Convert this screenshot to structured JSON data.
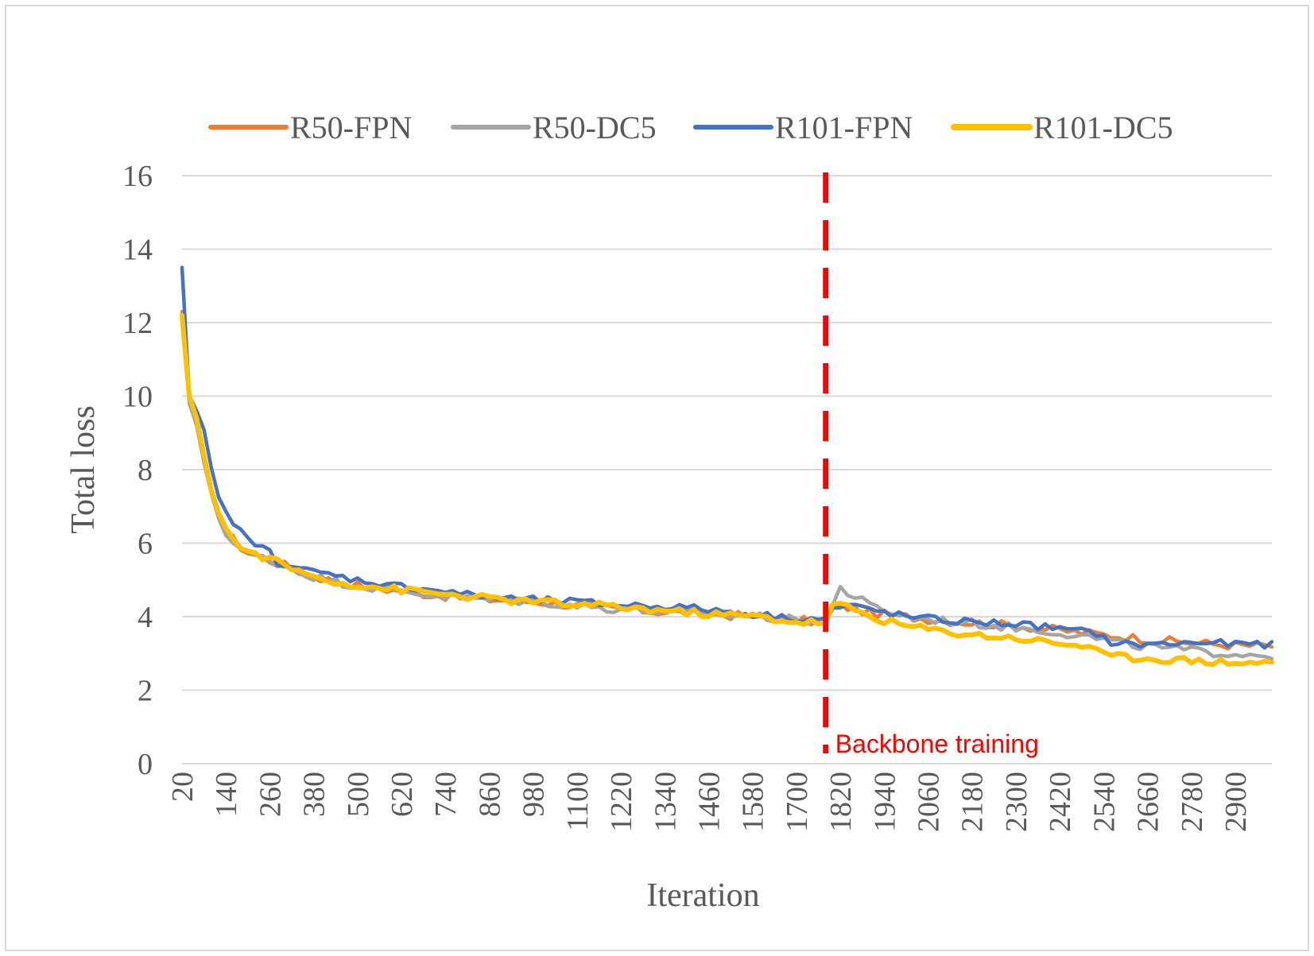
{
  "chart_data": {
    "type": "line",
    "title": "",
    "xlabel": "Iteration",
    "ylabel": "Total loss",
    "ylim": [
      0,
      16
    ],
    "yticks": [
      "0",
      "2",
      "4",
      "6",
      "8",
      "10",
      "12",
      "14",
      "16"
    ],
    "xtick_labels": [
      "20",
      "140",
      "260",
      "380",
      "500",
      "620",
      "740",
      "860",
      "980",
      "1100",
      "1220",
      "1340",
      "1460",
      "1580",
      "1700",
      "1820",
      "1940",
      "2060",
      "2180",
      "2300",
      "2420",
      "2540",
      "2660",
      "2780",
      "2900"
    ],
    "x_start": 20,
    "x_step": 20,
    "x_end": 3000,
    "grid": true,
    "legend_position": "top",
    "annotation": {
      "text": "Backbone training",
      "x": 1780,
      "color": "#ff0000"
    },
    "series": [
      {
        "name": "R50-FPN",
        "color": "#ed7d31",
        "keypoints": [
          [
            20,
            12.3
          ],
          [
            40,
            9.9
          ],
          [
            60,
            9.3
          ],
          [
            80,
            8.2
          ],
          [
            100,
            7.4
          ],
          [
            120,
            6.8
          ],
          [
            140,
            6.4
          ],
          [
            160,
            6.1
          ],
          [
            180,
            5.9
          ],
          [
            200,
            5.75
          ],
          [
            240,
            5.6
          ],
          [
            300,
            5.4
          ],
          [
            360,
            5.15
          ],
          [
            420,
            5.0
          ],
          [
            500,
            4.85
          ],
          [
            600,
            4.72
          ],
          [
            700,
            4.6
          ],
          [
            800,
            4.5
          ],
          [
            900,
            4.45
          ],
          [
            1000,
            4.4
          ],
          [
            1100,
            4.3
          ],
          [
            1200,
            4.22
          ],
          [
            1300,
            4.15
          ],
          [
            1400,
            4.1
          ],
          [
            1500,
            4.05
          ],
          [
            1600,
            4.0
          ],
          [
            1700,
            3.9
          ],
          [
            1780,
            3.85
          ],
          [
            1800,
            4.2
          ],
          [
            1820,
            4.3
          ],
          [
            1860,
            4.2
          ],
          [
            1900,
            4.1
          ],
          [
            2000,
            4.0
          ],
          [
            2100,
            3.9
          ],
          [
            2200,
            3.82
          ],
          [
            2300,
            3.75
          ],
          [
            2400,
            3.65
          ],
          [
            2500,
            3.55
          ],
          [
            2600,
            3.45
          ],
          [
            2700,
            3.35
          ],
          [
            2800,
            3.28
          ],
          [
            2900,
            3.22
          ],
          [
            3000,
            3.2
          ]
        ],
        "noise": 0.12
      },
      {
        "name": "R50-DC5",
        "color": "#a5a5a5",
        "keypoints": [
          [
            20,
            12.0
          ],
          [
            40,
            9.8
          ],
          [
            60,
            9.2
          ],
          [
            80,
            8.1
          ],
          [
            100,
            7.4
          ],
          [
            120,
            6.7
          ],
          [
            140,
            6.3
          ],
          [
            160,
            6.0
          ],
          [
            180,
            5.85
          ],
          [
            200,
            5.7
          ],
          [
            240,
            5.6
          ],
          [
            300,
            5.4
          ],
          [
            360,
            5.15
          ],
          [
            420,
            5.0
          ],
          [
            500,
            4.85
          ],
          [
            600,
            4.72
          ],
          [
            700,
            4.6
          ],
          [
            800,
            4.5
          ],
          [
            900,
            4.45
          ],
          [
            1000,
            4.4
          ],
          [
            1100,
            4.3
          ],
          [
            1200,
            4.22
          ],
          [
            1300,
            4.15
          ],
          [
            1400,
            4.1
          ],
          [
            1500,
            4.05
          ],
          [
            1600,
            4.0
          ],
          [
            1700,
            3.9
          ],
          [
            1780,
            3.85
          ],
          [
            1800,
            4.3
          ],
          [
            1820,
            4.9
          ],
          [
            1840,
            4.6
          ],
          [
            1860,
            4.55
          ],
          [
            1900,
            4.3
          ],
          [
            2000,
            4.0
          ],
          [
            2100,
            3.9
          ],
          [
            2200,
            3.8
          ],
          [
            2300,
            3.7
          ],
          [
            2400,
            3.6
          ],
          [
            2500,
            3.45
          ],
          [
            2600,
            3.25
          ],
          [
            2700,
            3.15
          ],
          [
            2800,
            3.05
          ],
          [
            2900,
            3.0
          ],
          [
            3000,
            2.95
          ]
        ],
        "noise": 0.12
      },
      {
        "name": "R101-FPN",
        "color": "#4472c4",
        "keypoints": [
          [
            20,
            13.5
          ],
          [
            40,
            10.0
          ],
          [
            60,
            9.6
          ],
          [
            80,
            9.0
          ],
          [
            100,
            8.0
          ],
          [
            120,
            7.2
          ],
          [
            140,
            6.8
          ],
          [
            160,
            6.6
          ],
          [
            180,
            6.3
          ],
          [
            200,
            6.2
          ],
          [
            220,
            5.9
          ],
          [
            260,
            5.8
          ],
          [
            280,
            5.5
          ],
          [
            320,
            5.4
          ],
          [
            360,
            5.25
          ],
          [
            420,
            5.15
          ],
          [
            500,
            5.0
          ],
          [
            600,
            4.85
          ],
          [
            700,
            4.75
          ],
          [
            800,
            4.6
          ],
          [
            900,
            4.5
          ],
          [
            1000,
            4.45
          ],
          [
            1100,
            4.4
          ],
          [
            1200,
            4.32
          ],
          [
            1300,
            4.3
          ],
          [
            1400,
            4.25
          ],
          [
            1500,
            4.15
          ],
          [
            1600,
            4.05
          ],
          [
            1700,
            3.95
          ],
          [
            1780,
            3.95
          ],
          [
            1800,
            4.2
          ],
          [
            1840,
            4.3
          ],
          [
            1900,
            4.2
          ],
          [
            2000,
            4.0
          ],
          [
            2100,
            3.9
          ],
          [
            2200,
            3.85
          ],
          [
            2300,
            3.8
          ],
          [
            2400,
            3.7
          ],
          [
            2460,
            3.6
          ],
          [
            2500,
            3.6
          ],
          [
            2520,
            3.55
          ],
          [
            2560,
            3.3
          ],
          [
            2600,
            3.25
          ],
          [
            2700,
            3.25
          ],
          [
            2800,
            3.3
          ],
          [
            2900,
            3.25
          ],
          [
            3000,
            3.25
          ]
        ],
        "noise": 0.1
      },
      {
        "name": "R101-DC5",
        "color": "#ffc000",
        "keypoints": [
          [
            20,
            12.2
          ],
          [
            40,
            10.0
          ],
          [
            60,
            9.4
          ],
          [
            80,
            8.3
          ],
          [
            100,
            7.5
          ],
          [
            120,
            6.9
          ],
          [
            140,
            6.4
          ],
          [
            160,
            6.1
          ],
          [
            180,
            5.9
          ],
          [
            200,
            5.75
          ],
          [
            240,
            5.65
          ],
          [
            300,
            5.4
          ],
          [
            360,
            5.15
          ],
          [
            420,
            5.0
          ],
          [
            500,
            4.85
          ],
          [
            600,
            4.75
          ],
          [
            700,
            4.65
          ],
          [
            800,
            4.55
          ],
          [
            900,
            4.45
          ],
          [
            1000,
            4.4
          ],
          [
            1100,
            4.32
          ],
          [
            1200,
            4.28
          ],
          [
            1300,
            4.2
          ],
          [
            1400,
            4.12
          ],
          [
            1500,
            4.05
          ],
          [
            1600,
            4.0
          ],
          [
            1700,
            3.85
          ],
          [
            1780,
            3.85
          ],
          [
            1800,
            4.3
          ],
          [
            1820,
            4.3
          ],
          [
            1860,
            4.2
          ],
          [
            1900,
            4.0
          ],
          [
            2000,
            3.75
          ],
          [
            2100,
            3.6
          ],
          [
            2200,
            3.5
          ],
          [
            2300,
            3.42
          ],
          [
            2400,
            3.3
          ],
          [
            2500,
            3.2
          ],
          [
            2540,
            2.95
          ],
          [
            2600,
            2.9
          ],
          [
            2700,
            2.85
          ],
          [
            2800,
            2.8
          ],
          [
            2900,
            2.75
          ],
          [
            3000,
            2.75
          ]
        ],
        "noise": 0.1
      }
    ]
  }
}
